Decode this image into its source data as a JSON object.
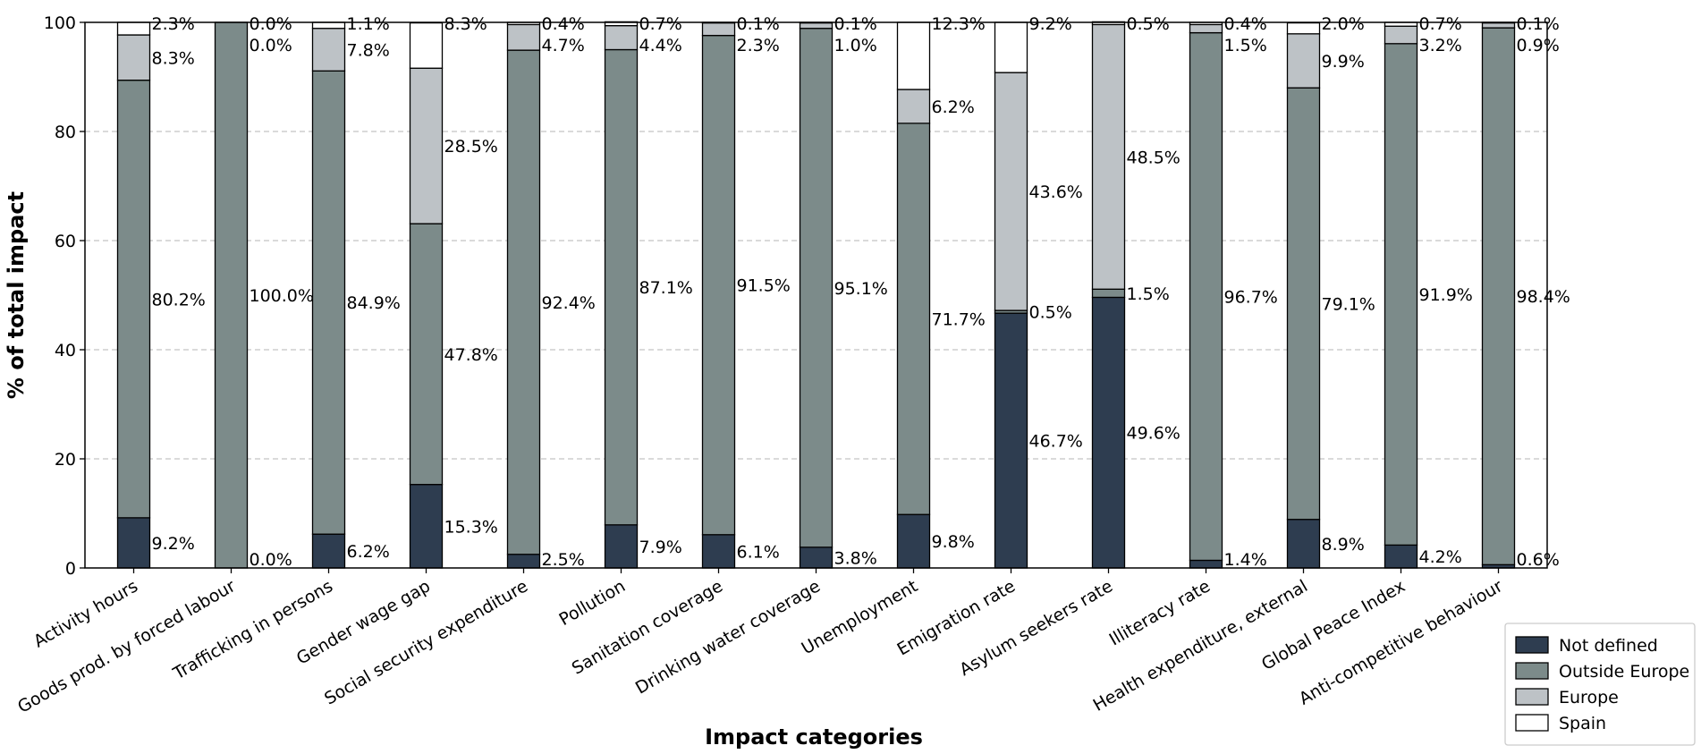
{
  "chart_data": {
    "type": "bar",
    "stacked": true,
    "xlabel": "Impact categories",
    "ylabel": "% of total impact",
    "ylim": [
      0,
      100
    ],
    "yticks": [
      0,
      20,
      40,
      60,
      80,
      100
    ],
    "grid": "y-dashed",
    "legend_position": "bottom-right",
    "categories": [
      "Activity hours",
      "Goods prod. by forced labour",
      "Trafficking in persons",
      "Gender wage gap",
      "Social security expenditure",
      "Pollution",
      "Sanitation coverage",
      "Drinking water coverage",
      "Unemployment",
      "Emigration rate",
      "Asylum seekers rate",
      "Illiteracy rate",
      "Health expenditure, external",
      "Global Peace Index",
      "Anti-competitive behaviour"
    ],
    "series": [
      {
        "name": "Not defined",
        "color": "#2e3d50",
        "values": [
          9.2,
          0.0,
          6.2,
          15.3,
          2.5,
          7.9,
          6.1,
          3.8,
          9.8,
          46.7,
          49.6,
          1.4,
          8.9,
          4.2,
          0.6
        ],
        "labels": [
          "9.2%",
          "0.0%",
          "6.2%",
          "15.3%",
          "2.5%",
          "7.9%",
          "6.1%",
          "3.8%",
          "9.8%",
          "46.7%",
          "49.6%",
          "1.4%",
          "8.9%",
          "4.2%",
          "0.6%"
        ]
      },
      {
        "name": "Outside Europe",
        "color": "#7c8b8a",
        "values": [
          80.2,
          100.0,
          84.9,
          47.8,
          92.4,
          87.1,
          91.5,
          95.1,
          71.7,
          0.5,
          1.5,
          96.7,
          79.1,
          91.9,
          98.4
        ],
        "labels": [
          "80.2%",
          "100.0%",
          "84.9%",
          "47.8%",
          "92.4%",
          "87.1%",
          "91.5%",
          "95.1%",
          "71.7%",
          "0.5%",
          "1.5%",
          "96.7%",
          "79.1%",
          "91.9%",
          "98.4%"
        ]
      },
      {
        "name": "Europe",
        "color": "#bdc2c6",
        "values": [
          8.3,
          0.0,
          7.8,
          28.5,
          4.7,
          4.4,
          2.3,
          1.0,
          6.2,
          43.6,
          48.5,
          1.5,
          9.9,
          3.2,
          0.9
        ],
        "labels": [
          "8.3%",
          "0.0%",
          "7.8%",
          "28.5%",
          "4.7%",
          "4.4%",
          "2.3%",
          "1.0%",
          "6.2%",
          "43.6%",
          "48.5%",
          "1.5%",
          "9.9%",
          "3.2%",
          "0.9%"
        ]
      },
      {
        "name": "Spain",
        "color": "#ffffff",
        "values": [
          2.3,
          0.0,
          1.1,
          8.3,
          0.4,
          0.7,
          0.1,
          0.1,
          12.3,
          9.2,
          0.5,
          0.4,
          2.0,
          0.7,
          0.1
        ],
        "labels": [
          "2.3%",
          "0.0%",
          "1.1%",
          "8.3%",
          "0.4%",
          "0.7%",
          "0.1%",
          "0.1%",
          "12.3%",
          "9.2%",
          "0.5%",
          "0.4%",
          "2.0%",
          "0.7%",
          "0.1%"
        ]
      }
    ]
  }
}
